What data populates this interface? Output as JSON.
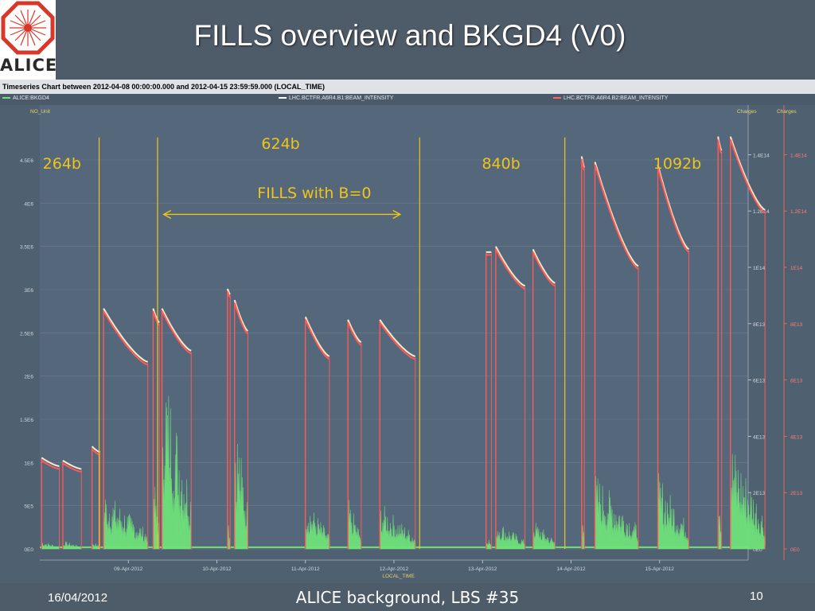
{
  "slide": {
    "title": "FILLS overview and BKGD4 (V0)",
    "logo_text": "ALICE",
    "footer": {
      "date": "16/04/2012",
      "center": "ALICE background, LBS #35",
      "page": "10"
    }
  },
  "chart_window": {
    "caption": "Timeseries Chart between 2012-04-08 00:00:00.000 and 2012-04-15 23:59:59.000 (LOCAL_TIME)",
    "legend": [
      {
        "label": "ALICE:BKGD4",
        "color": "#6fe27a"
      },
      {
        "label": "LHC.BCTFR.A6R4.B1:BEAM_INTENSITY",
        "color": "#ffffff"
      },
      {
        "label": "LHC.BCTFR.A6R4.B2:BEAM_INTENSITY",
        "color": "#ff6a60"
      }
    ]
  },
  "chart_data": {
    "type": "line",
    "title": "",
    "xlabel": "LOCAL_TIME",
    "ylabel_left": "NO_Unit",
    "ylabel_right": "Charges",
    "ylabel_right2": "Charges",
    "x_range": [
      0,
      8
    ],
    "x_ticks": [
      {
        "x": 1,
        "label": "09-Apr-2012"
      },
      {
        "x": 2,
        "label": "10-Apr-2012"
      },
      {
        "x": 3,
        "label": "11-Apr-2012"
      },
      {
        "x": 4,
        "label": "12-Apr-2012"
      },
      {
        "x": 5,
        "label": "13-Apr-2012"
      },
      {
        "x": 6,
        "label": "14-Apr-2012"
      },
      {
        "x": 7,
        "label": "15-Apr-2012"
      }
    ],
    "y_left": {
      "range": [
        0,
        4.5
      ],
      "ticks": [
        {
          "v": 0,
          "label": "0E0"
        },
        {
          "v": 0.5,
          "label": "5E5"
        },
        {
          "v": 1,
          "label": "1E6"
        },
        {
          "v": 1.5,
          "label": "1.5E6"
        },
        {
          "v": 2,
          "label": "2E6"
        },
        {
          "v": 2.5,
          "label": "2.5E6"
        },
        {
          "v": 3,
          "label": "3E6"
        },
        {
          "v": 3.5,
          "label": "3.5E6"
        },
        {
          "v": 4,
          "label": "4E6"
        },
        {
          "v": 4.5,
          "label": "4.5E6"
        }
      ]
    },
    "y_right": {
      "range": [
        0,
        1.4
      ],
      "ticks": [
        {
          "v": 0,
          "label": "0E0"
        },
        {
          "v": 0.2,
          "label": "2E13"
        },
        {
          "v": 0.4,
          "label": "4E13"
        },
        {
          "v": 0.6,
          "label": "6E13"
        },
        {
          "v": 0.8,
          "label": "8E13"
        },
        {
          "v": 1.0,
          "label": "1E14"
        },
        {
          "v": 1.2,
          "label": "1.2E14"
        },
        {
          "v": 1.4,
          "label": "1.4E14"
        }
      ]
    },
    "y_right2": {
      "ticks": [
        {
          "v": 0,
          "label": "0E0"
        },
        {
          "v": 0.2,
          "label": "2E13"
        },
        {
          "v": 0.4,
          "label": "4E13"
        },
        {
          "v": 0.6,
          "label": "6E13"
        },
        {
          "v": 0.8,
          "label": "8E13"
        },
        {
          "v": 1.0,
          "label": "1E14"
        },
        {
          "v": 1.2,
          "label": "1.2E14"
        },
        {
          "v": 1.4,
          "label": "1.4E14"
        }
      ]
    },
    "fills": [
      {
        "x0": 0.02,
        "x1": 0.22,
        "y0": 0.32,
        "y1": 0.29,
        "bkg": 0.1
      },
      {
        "x0": 0.26,
        "x1": 0.47,
        "y0": 0.31,
        "y1": 0.28,
        "bkg": 0.1
      },
      {
        "x0": 0.59,
        "x1": 0.68,
        "y0": 0.36,
        "y1": 0.34,
        "bkg": 0.1
      },
      {
        "x0": 0.72,
        "x1": 1.22,
        "y0": 0.85,
        "y1": 0.66,
        "bkg": 0.7
      },
      {
        "x0": 1.28,
        "x1": 1.35,
        "y0": 0.85,
        "y1": 0.8,
        "bkg": 1.0
      },
      {
        "x0": 1.38,
        "x1": 1.71,
        "y0": 0.85,
        "y1": 0.7,
        "bkg": 2.3
      },
      {
        "x0": 2.12,
        "x1": 2.15,
        "y0": 0.92,
        "y1": 0.9,
        "bkg": 0.6
      },
      {
        "x0": 2.2,
        "x1": 2.35,
        "y0": 0.88,
        "y1": 0.77,
        "bkg": 1.7
      },
      {
        "x0": 3.0,
        "x1": 3.27,
        "y0": 0.82,
        "y1": 0.68,
        "bkg": 0.6
      },
      {
        "x0": 3.48,
        "x1": 3.63,
        "y0": 0.81,
        "y1": 0.73,
        "bkg": 0.6
      },
      {
        "x0": 3.84,
        "x1": 4.24,
        "y0": 0.81,
        "y1": 0.68,
        "bkg": 0.55
      },
      {
        "x0": 5.04,
        "x1": 5.1,
        "y0": 1.05,
        "y1": 1.05,
        "bkg": 0.2
      },
      {
        "x0": 5.15,
        "x1": 5.48,
        "y0": 1.07,
        "y1": 0.93,
        "bkg": 0.35
      },
      {
        "x0": 5.57,
        "x1": 5.82,
        "y0": 1.06,
        "y1": 0.94,
        "bkg": 0.35
      },
      {
        "x0": 6.12,
        "x1": 6.15,
        "y0": 1.39,
        "y1": 1.35,
        "bkg": 0.9
      },
      {
        "x0": 6.27,
        "x1": 6.76,
        "y0": 1.37,
        "y1": 1.0,
        "bkg": 0.9
      },
      {
        "x0": 6.98,
        "x1": 7.33,
        "y0": 1.36,
        "y1": 1.06,
        "bkg": 0.9
      },
      {
        "x0": 7.66,
        "x1": 7.7,
        "y0": 1.46,
        "y1": 1.41,
        "bkg": 1.1
      },
      {
        "x0": 7.8,
        "x1": 8.19,
        "y0": 1.46,
        "y1": 1.2,
        "bkg": 1.3
      }
    ],
    "annotations": {
      "vlines": [
        0.67,
        1.33,
        4.29,
        5.93
      ],
      "labels": [
        {
          "text": "264b",
          "x": 0.25,
          "y": 4.4
        },
        {
          "text": "624b",
          "x": 2.72,
          "y": 4.63
        },
        {
          "text": "FILLS with B=0",
          "x": 3.1,
          "y": 4.06
        },
        {
          "text": "840b",
          "x": 5.21,
          "y": 4.4
        },
        {
          "text": "1092b",
          "x": 7.2,
          "y": 4.4
        }
      ],
      "arrow": {
        "x0": 1.4,
        "x1": 4.07,
        "y": 3.87
      }
    },
    "colors": {
      "bkgd4": "#6fe27a",
      "b1": "#f3eccf",
      "b2": "#ff5a55",
      "annotation": "#f0c419"
    }
  }
}
